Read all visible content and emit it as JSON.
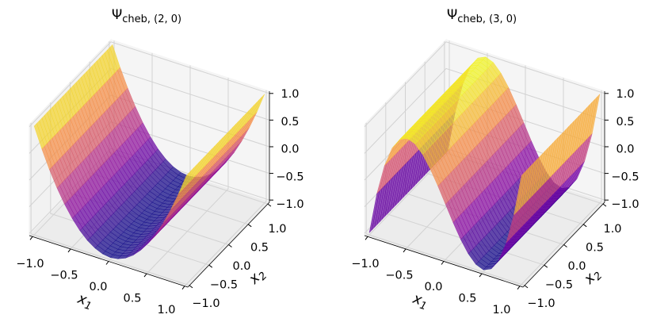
{
  "chart_data": [
    {
      "type": "surface",
      "title_main": "Ψ",
      "title_sub": "cheb, (2, 0)",
      "xlabel_main": "x",
      "xlabel_sub": "1",
      "ylabel_main": "x",
      "ylabel_sub": "2",
      "x1_ticks": [
        "−1.0",
        "−0.5",
        "0.0",
        "0.5",
        "1.0"
      ],
      "x2_ticks": [
        "−1.0",
        "−0.5",
        "0.0",
        "0.5",
        "1.0"
      ],
      "z_ticks": [
        "−1.0",
        "−0.5",
        "0.0",
        "0.5",
        "1.0"
      ],
      "xlim": [
        -1,
        1
      ],
      "ylim": [
        -1,
        1
      ],
      "zlim": [
        -1,
        1
      ],
      "colormap": "plasma",
      "x1": [
        -1,
        -0.9,
        -0.8,
        -0.7,
        -0.6,
        -0.5,
        -0.4,
        -0.3,
        -0.2,
        -0.1,
        0,
        0.1,
        0.2,
        0.3,
        0.4,
        0.5,
        0.6,
        0.7,
        0.8,
        0.9,
        1
      ],
      "z_along_x1_constant_in_x2": [
        1,
        0.62,
        0.28,
        -0.02,
        -0.28,
        -0.5,
        -0.68,
        -0.82,
        -0.92,
        -0.98,
        -1,
        -0.98,
        -0.92,
        -0.82,
        -0.68,
        -0.5,
        -0.28,
        -0.02,
        0.28,
        0.62,
        1
      ]
    },
    {
      "type": "surface",
      "title_main": "Ψ",
      "title_sub": "cheb, (3, 0)",
      "xlabel_main": "x",
      "xlabel_sub": "1",
      "ylabel_main": "x",
      "ylabel_sub": "2",
      "x1_ticks": [
        "−1.0",
        "−0.5",
        "0.0",
        "0.5",
        "1.0"
      ],
      "x2_ticks": [
        "−1.0",
        "−0.5",
        "0.0",
        "0.5",
        "1.0"
      ],
      "z_ticks": [
        "−1.0",
        "−0.5",
        "0.0",
        "0.5",
        "1.0"
      ],
      "xlim": [
        -1,
        1
      ],
      "ylim": [
        -1,
        1
      ],
      "zlim": [
        -1,
        1
      ],
      "colormap": "plasma",
      "x1": [
        -1,
        -0.9,
        -0.8,
        -0.7,
        -0.6,
        -0.5,
        -0.4,
        -0.3,
        -0.2,
        -0.1,
        0,
        0.1,
        0.2,
        0.3,
        0.4,
        0.5,
        0.6,
        0.7,
        0.8,
        0.9,
        1
      ],
      "z_along_x1_constant_in_x2": [
        -1,
        -0.216,
        0.352,
        0.728,
        0.936,
        1,
        0.944,
        0.792,
        0.568,
        0.296,
        0,
        -0.296,
        -0.568,
        -0.792,
        -0.944,
        -1,
        -0.936,
        -0.728,
        -0.352,
        0.216,
        1
      ]
    }
  ]
}
